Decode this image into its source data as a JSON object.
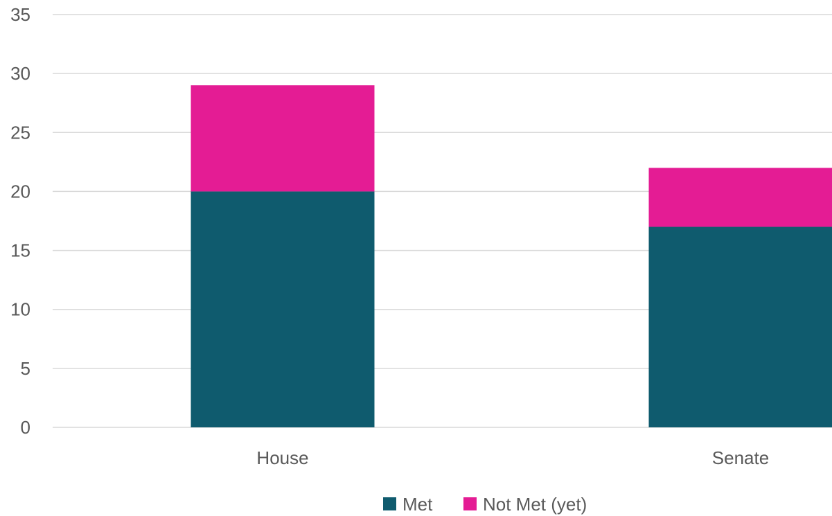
{
  "chart_data": {
    "type": "bar",
    "stacked": true,
    "title": "",
    "xlabel": "",
    "ylabel": "",
    "categories": [
      "House",
      "Senate"
    ],
    "series": [
      {
        "name": "Met",
        "values": [
          20,
          17
        ],
        "color": "#0f5b6e"
      },
      {
        "name": "Not Met (yet)",
        "values": [
          9,
          5
        ],
        "color": "#e41c94"
      }
    ],
    "ylim": [
      0,
      35
    ],
    "yticks": [
      0,
      5,
      10,
      15,
      20,
      25,
      30,
      35
    ],
    "grid": true,
    "legend": "bottom"
  }
}
